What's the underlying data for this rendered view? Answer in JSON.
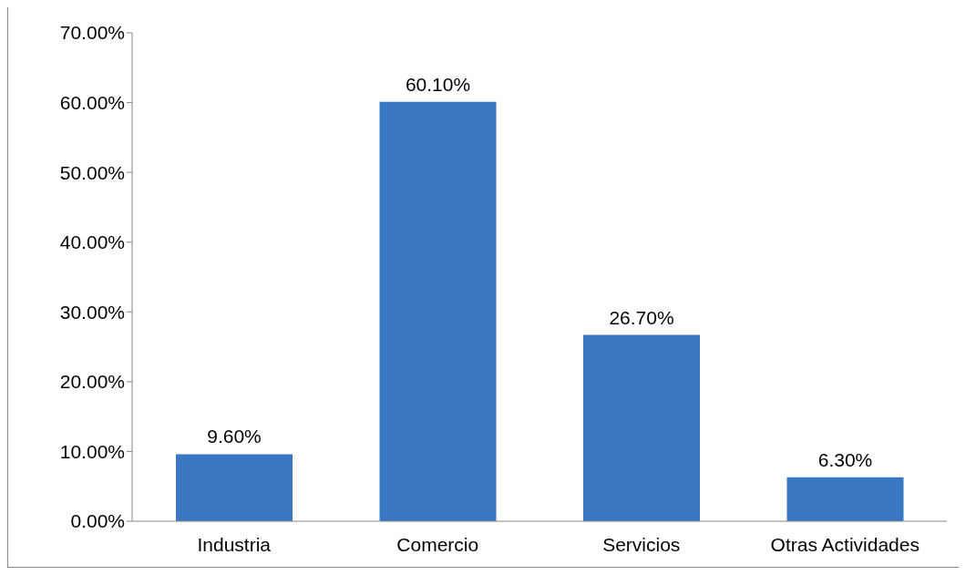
{
  "chart_data": {
    "type": "bar",
    "categories": [
      "Industria",
      "Comercio",
      "Servicios",
      "Otras Actividades"
    ],
    "values": [
      9.6,
      60.1,
      26.7,
      6.3
    ],
    "value_labels": [
      "9.60%",
      "60.10%",
      "26.70%",
      "6.30%"
    ],
    "color": "#3a77c2",
    "ylim": [
      0,
      70
    ],
    "yticks": [
      {
        "value": 0,
        "label": "0.00%"
      },
      {
        "value": 10,
        "label": "10.00%"
      },
      {
        "value": 20,
        "label": "20.00%"
      },
      {
        "value": 30,
        "label": "30.00%"
      },
      {
        "value": 40,
        "label": "40.00%"
      },
      {
        "value": 50,
        "label": "50.00%"
      },
      {
        "value": 60,
        "label": "60.00%"
      },
      {
        "value": 70,
        "label": "70.00%"
      }
    ],
    "grid": false,
    "legend": false
  }
}
